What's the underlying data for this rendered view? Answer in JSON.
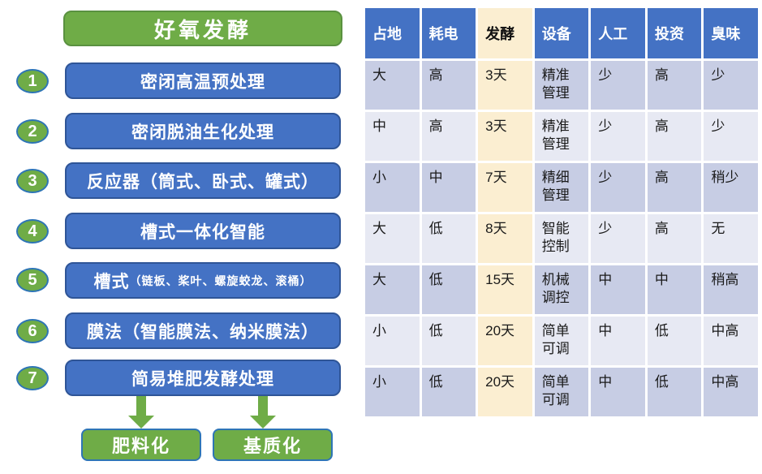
{
  "colors": {
    "green": "#6FAC47",
    "green_border": "#5A9140",
    "blue": "#4472C4",
    "blue_border": "#2F5597",
    "circle_border": "#2E75B6",
    "highlight_cream": "#FBEED1",
    "row_band_dark": "#C7CDE4",
    "row_band_light": "#E7E9F3"
  },
  "flowchart": {
    "title": "好氧发酵",
    "items": [
      {
        "num": "1",
        "label": "密闭高温预处理"
      },
      {
        "num": "2",
        "label": "密闭脱油生化处理"
      },
      {
        "num": "3",
        "label": "反应器（筒式、卧式、罐式）"
      },
      {
        "num": "4",
        "label": "槽式一体化智能"
      },
      {
        "num": "5",
        "label": "槽式",
        "sub": "（链板、桨叶、螺旋蛟龙、滚桶）"
      },
      {
        "num": "6",
        "label": "膜法（智能膜法、纳米膜法）"
      },
      {
        "num": "7",
        "label": "简易堆肥发酵处理"
      }
    ],
    "outputs": [
      {
        "label": "肥料化"
      },
      {
        "label": "基质化"
      }
    ]
  },
  "table": {
    "headers": [
      "占地",
      "耗电",
      "发酵",
      "设备",
      "人工",
      "投资",
      "臭味"
    ],
    "highlighted_column": "发酵",
    "rows": [
      [
        "大",
        "高",
        "3天",
        "精准管理",
        "少",
        "高",
        "少"
      ],
      [
        "中",
        "高",
        "3天",
        "精准管理",
        "少",
        "高",
        "少"
      ],
      [
        "小",
        "中",
        "7天",
        "精细管理",
        "少",
        "高",
        "稍少"
      ],
      [
        "大",
        "低",
        "8天",
        "智能控制",
        "少",
        "高",
        "无"
      ],
      [
        "大",
        "低",
        "15天",
        "机械调控",
        "中",
        "中",
        "稍高"
      ],
      [
        "小",
        "低",
        "20天",
        "简单可调",
        "中",
        "低",
        "中高"
      ],
      [
        "小",
        "低",
        "20天",
        "简单可调",
        "中",
        "低",
        "中高"
      ]
    ]
  }
}
